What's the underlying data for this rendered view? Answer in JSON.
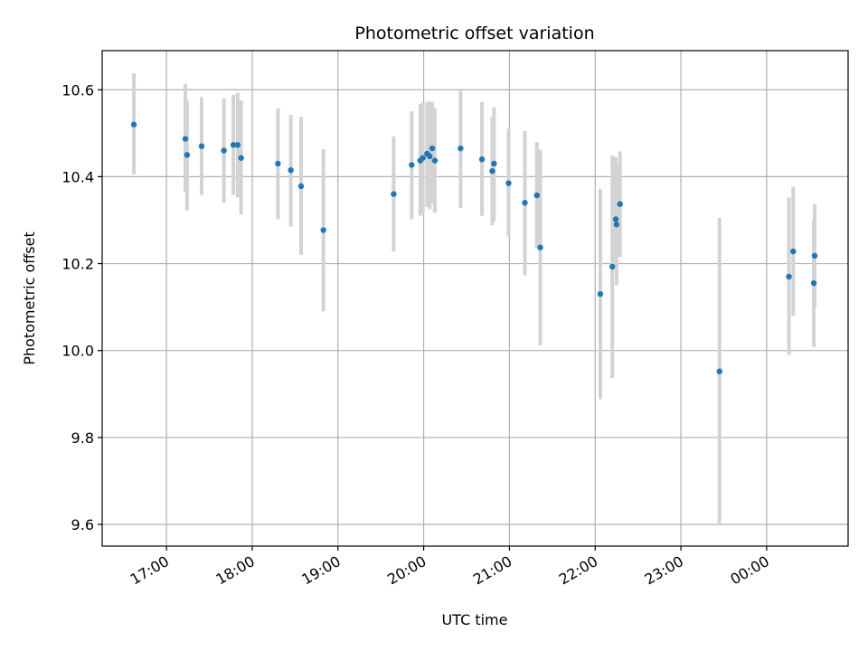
{
  "chart_data": {
    "type": "scatter",
    "title": "Photometric offset variation",
    "xlabel": "UTC time",
    "ylabel": "Photometric offset",
    "x_unit": "hour",
    "xlim": [
      16.25,
      24.95
    ],
    "ylim": [
      9.55,
      10.69
    ],
    "xticks": [
      {
        "value": 17,
        "label": "17:00"
      },
      {
        "value": 18,
        "label": "18:00"
      },
      {
        "value": 19,
        "label": "19:00"
      },
      {
        "value": 20,
        "label": "20:00"
      },
      {
        "value": 21,
        "label": "21:00"
      },
      {
        "value": 22,
        "label": "22:00"
      },
      {
        "value": 23,
        "label": "23:00"
      },
      {
        "value": 24,
        "label": "00:00"
      }
    ],
    "yticks": [
      {
        "value": 9.6,
        "label": "9.6"
      },
      {
        "value": 9.8,
        "label": "9.8"
      },
      {
        "value": 10.0,
        "label": "10.0"
      },
      {
        "value": 10.2,
        "label": "10.2"
      },
      {
        "value": 10.4,
        "label": "10.4"
      },
      {
        "value": 10.6,
        "label": "10.6"
      }
    ],
    "grid": true,
    "colors": {
      "points": "#1f77b4",
      "errorbars": "#d3d3d3",
      "grid": "#b0b0b0"
    },
    "points": [
      {
        "x": 16.62,
        "y": 10.52,
        "ylow": 10.405,
        "yhigh": 10.638
      },
      {
        "x": 17.22,
        "y": 10.487,
        "ylow": 10.365,
        "yhigh": 10.613
      },
      {
        "x": 17.24,
        "y": 10.45,
        "ylow": 10.322,
        "yhigh": 10.575
      },
      {
        "x": 17.41,
        "y": 10.47,
        "ylow": 10.358,
        "yhigh": 10.583
      },
      {
        "x": 17.67,
        "y": 10.46,
        "ylow": 10.34,
        "yhigh": 10.58
      },
      {
        "x": 17.78,
        "y": 10.473,
        "ylow": 10.358,
        "yhigh": 10.588
      },
      {
        "x": 17.83,
        "y": 10.473,
        "ylow": 10.352,
        "yhigh": 10.593
      },
      {
        "x": 17.87,
        "y": 10.443,
        "ylow": 10.313,
        "yhigh": 10.575
      },
      {
        "x": 18.3,
        "y": 10.43,
        "ylow": 10.302,
        "yhigh": 10.557
      },
      {
        "x": 18.45,
        "y": 10.415,
        "ylow": 10.285,
        "yhigh": 10.542
      },
      {
        "x": 18.57,
        "y": 10.378,
        "ylow": 10.22,
        "yhigh": 10.538
      },
      {
        "x": 18.83,
        "y": 10.277,
        "ylow": 10.09,
        "yhigh": 10.463
      },
      {
        "x": 19.65,
        "y": 10.36,
        "ylow": 10.228,
        "yhigh": 10.493
      },
      {
        "x": 19.86,
        "y": 10.427,
        "ylow": 10.302,
        "yhigh": 10.55
      },
      {
        "x": 19.96,
        "y": 10.437,
        "ylow": 10.31,
        "yhigh": 10.567
      },
      {
        "x": 19.99,
        "y": 10.443,
        "ylow": 10.315,
        "yhigh": 10.57
      },
      {
        "x": 20.04,
        "y": 10.453,
        "ylow": 10.33,
        "yhigh": 10.572
      },
      {
        "x": 20.07,
        "y": 10.447,
        "ylow": 10.325,
        "yhigh": 10.573
      },
      {
        "x": 20.1,
        "y": 10.465,
        "ylow": 10.338,
        "yhigh": 10.572
      },
      {
        "x": 20.13,
        "y": 10.437,
        "ylow": 10.317,
        "yhigh": 10.557
      },
      {
        "x": 20.43,
        "y": 10.465,
        "ylow": 10.328,
        "yhigh": 10.598
      },
      {
        "x": 20.68,
        "y": 10.44,
        "ylow": 10.31,
        "yhigh": 10.572
      },
      {
        "x": 20.8,
        "y": 10.413,
        "ylow": 10.288,
        "yhigh": 10.538
      },
      {
        "x": 20.82,
        "y": 10.43,
        "ylow": 10.298,
        "yhigh": 10.56
      },
      {
        "x": 20.99,
        "y": 10.385,
        "ylow": 10.262,
        "yhigh": 10.51
      },
      {
        "x": 21.18,
        "y": 10.34,
        "ylow": 10.173,
        "yhigh": 10.505
      },
      {
        "x": 21.32,
        "y": 10.357,
        "ylow": 10.235,
        "yhigh": 10.48
      },
      {
        "x": 21.36,
        "y": 10.237,
        "ylow": 10.012,
        "yhigh": 10.462
      },
      {
        "x": 22.06,
        "y": 10.13,
        "ylow": 9.888,
        "yhigh": 10.372
      },
      {
        "x": 22.2,
        "y": 10.193,
        "ylow": 9.937,
        "yhigh": 10.448
      },
      {
        "x": 22.24,
        "y": 10.302,
        "ylow": 10.205,
        "yhigh": 10.445
      },
      {
        "x": 22.25,
        "y": 10.29,
        "ylow": 10.15,
        "yhigh": 10.428
      },
      {
        "x": 22.29,
        "y": 10.337,
        "ylow": 10.215,
        "yhigh": 10.458
      },
      {
        "x": 23.45,
        "y": 9.952,
        "ylow": 9.6,
        "yhigh": 10.305
      },
      {
        "x": 24.26,
        "y": 10.17,
        "ylow": 9.99,
        "yhigh": 10.352
      },
      {
        "x": 24.31,
        "y": 10.228,
        "ylow": 10.08,
        "yhigh": 10.377
      },
      {
        "x": 24.55,
        "y": 10.155,
        "ylow": 10.008,
        "yhigh": 10.302
      },
      {
        "x": 24.56,
        "y": 10.218,
        "ylow": 10.1,
        "yhigh": 10.337
      }
    ]
  }
}
